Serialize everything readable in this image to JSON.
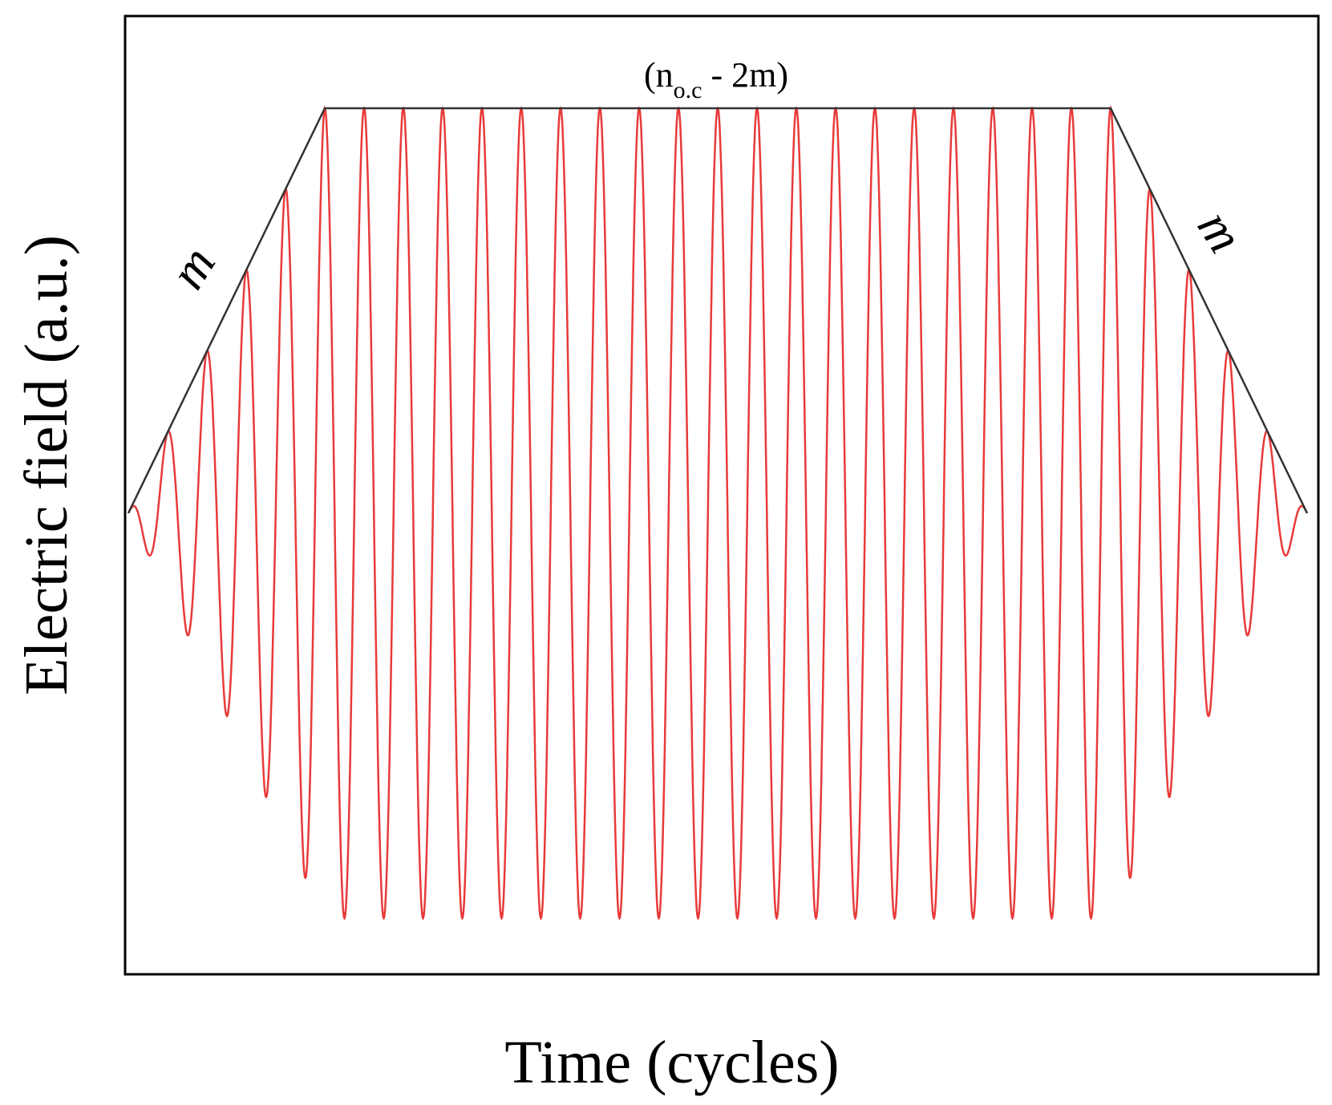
{
  "chart_data": {
    "type": "line",
    "title": "",
    "xlabel": "Time (cycles)",
    "ylabel": "Electric field (a.u.)",
    "ticks_shown": false,
    "grid": false,
    "legend": "none",
    "colors": {
      "signal": "#e83a3a",
      "envelope": "#333333",
      "frame": "#000000"
    },
    "signal": {
      "description": "trapezoidal-envelope sinusoid",
      "total_cycles": 30,
      "ramp_cycles_m": 5,
      "amplitude_max": 1.0
    },
    "envelope": {
      "x": [
        0,
        5,
        25,
        30
      ],
      "y": [
        0,
        1,
        1,
        0
      ]
    },
    "annotations": {
      "flat_label_main": "(n",
      "flat_label_sub": "o.c",
      "flat_label_tail": " - 2m)",
      "ramp_up_label": "m",
      "ramp_down_label": "m"
    }
  }
}
